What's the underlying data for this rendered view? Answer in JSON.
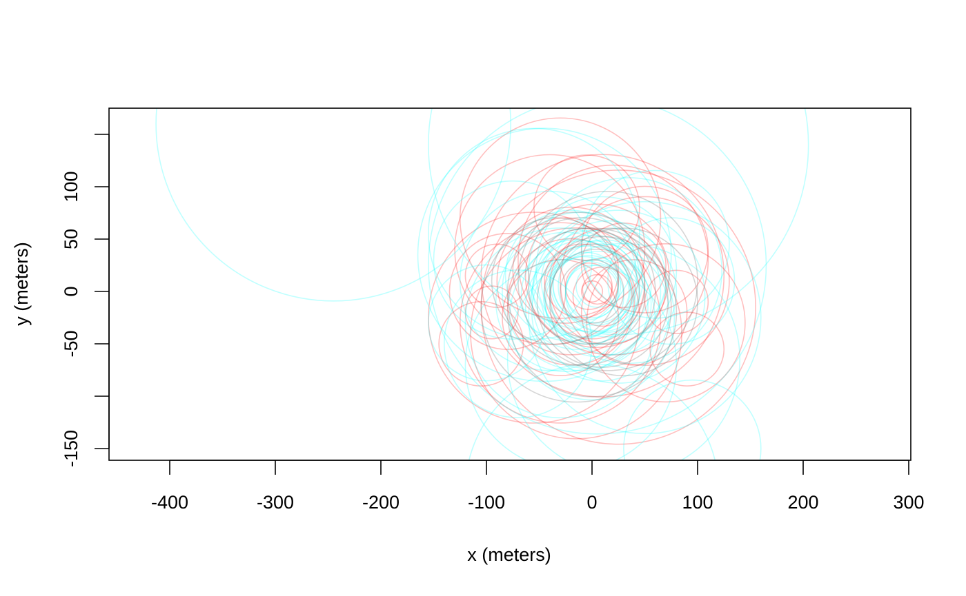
{
  "chart_data": {
    "type": "scatter",
    "title": "",
    "xlabel": "x (meters)",
    "ylabel": "y (meters)",
    "xlim": [
      -460,
      302
    ],
    "ylim": [
      -160,
      175
    ],
    "x_ticks": [
      -400,
      -300,
      -200,
      -100,
      0,
      100,
      200,
      300
    ],
    "y_ticks": [
      -150,
      -100,
      -50,
      0,
      50,
      100,
      150
    ],
    "x_tick_labels": [
      "-400",
      "-300",
      "-200",
      "-100",
      "0",
      "100",
      "200",
      "300"
    ],
    "y_tick_labels": [
      "-150",
      "",
      "-50",
      "0",
      "50",
      "100",
      ""
    ],
    "grid": false,
    "legend": null,
    "series": [
      {
        "color": "#FF0000",
        "opacity": 0.25,
        "circles": [
          {
            "cx": 0,
            "cy": 0,
            "r": 10
          },
          {
            "cx": 5,
            "cy": 2,
            "r": 14
          },
          {
            "cx": -3,
            "cy": 5,
            "r": 22
          },
          {
            "cx": 10,
            "cy": -5,
            "r": 28
          },
          {
            "cx": -10,
            "cy": 10,
            "r": 35
          },
          {
            "cx": 0,
            "cy": 0,
            "r": 45
          },
          {
            "cx": 15,
            "cy": 5,
            "r": 55
          },
          {
            "cx": -20,
            "cy": -10,
            "r": 60
          },
          {
            "cx": 5,
            "cy": 15,
            "r": 68
          },
          {
            "cx": 30,
            "cy": 25,
            "r": 40
          },
          {
            "cx": -25,
            "cy": 20,
            "r": 50
          },
          {
            "cx": 40,
            "cy": -20,
            "r": 50
          },
          {
            "cx": -30,
            "cy": -25,
            "r": 55
          },
          {
            "cx": -90,
            "cy": 15,
            "r": 30
          },
          {
            "cx": -95,
            "cy": -20,
            "r": 25
          },
          {
            "cx": -105,
            "cy": -50,
            "r": 40
          },
          {
            "cx": -80,
            "cy": 0,
            "r": 55
          },
          {
            "cx": 50,
            "cy": 40,
            "r": 60
          },
          {
            "cx": 90,
            "cy": -55,
            "r": 35
          },
          {
            "cx": 80,
            "cy": -10,
            "r": 30
          },
          {
            "cx": -5,
            "cy": 80,
            "r": 50
          },
          {
            "cx": 70,
            "cy": -30,
            "r": 75
          },
          {
            "cx": -40,
            "cy": 40,
            "r": 90
          },
          {
            "cx": -30,
            "cy": -30,
            "r": 95
          },
          {
            "cx": 20,
            "cy": 30,
            "r": 90
          },
          {
            "cx": -15,
            "cy": -40,
            "r": 100
          },
          {
            "cx": 25,
            "cy": -15,
            "r": 130
          },
          {
            "cx": -30,
            "cy": 70,
            "r": 95
          },
          {
            "cx": 10,
            "cy": 15,
            "r": 115
          },
          {
            "cx": -55,
            "cy": -25,
            "r": 100
          },
          {
            "cx": 50,
            "cy": 10,
            "r": 80
          },
          {
            "cx": -20,
            "cy": 10,
            "r": 70
          }
        ]
      },
      {
        "color": "#00FFFF",
        "opacity": 0.25,
        "circles": [
          {
            "cx": -245,
            "cy": 160,
            "r": 168
          },
          {
            "cx": 5,
            "cy": 5,
            "r": 20
          },
          {
            "cx": 0,
            "cy": 0,
            "r": 25
          },
          {
            "cx": 5,
            "cy": 0,
            "r": 30
          },
          {
            "cx": -5,
            "cy": 5,
            "r": 32
          },
          {
            "cx": 10,
            "cy": -3,
            "r": 35
          },
          {
            "cx": -8,
            "cy": -5,
            "r": 38
          },
          {
            "cx": 3,
            "cy": 8,
            "r": 40
          },
          {
            "cx": -3,
            "cy": -8,
            "r": 42
          },
          {
            "cx": 12,
            "cy": 5,
            "r": 44
          },
          {
            "cx": -10,
            "cy": 2,
            "r": 46
          },
          {
            "cx": 0,
            "cy": 10,
            "r": 48
          },
          {
            "cx": 6,
            "cy": -12,
            "r": 50
          },
          {
            "cx": -15,
            "cy": -3,
            "r": 52
          },
          {
            "cx": 15,
            "cy": 12,
            "r": 55
          },
          {
            "cx": -5,
            "cy": -15,
            "r": 58
          },
          {
            "cx": 20,
            "cy": 0,
            "r": 60
          },
          {
            "cx": -20,
            "cy": 15,
            "r": 62
          },
          {
            "cx": 8,
            "cy": -20,
            "r": 65
          },
          {
            "cx": -25,
            "cy": -10,
            "r": 66
          },
          {
            "cx": 10,
            "cy": 20,
            "r": 70
          },
          {
            "cx": -10,
            "cy": 0,
            "r": 75
          },
          {
            "cx": 0,
            "cy": -25,
            "r": 78
          },
          {
            "cx": 25,
            "cy": -5,
            "r": 82
          },
          {
            "cx": -40,
            "cy": 10,
            "r": 85
          },
          {
            "cx": 35,
            "cy": 20,
            "r": 88
          },
          {
            "cx": -30,
            "cy": -30,
            "r": 90
          },
          {
            "cx": -55,
            "cy": 55,
            "r": 100
          },
          {
            "cx": -70,
            "cy": -50,
            "r": 70
          },
          {
            "cx": -100,
            "cy": -30,
            "r": 55
          },
          {
            "cx": -75,
            "cy": 30,
            "r": 75
          },
          {
            "cx": 60,
            "cy": 45,
            "r": 70
          },
          {
            "cx": 75,
            "cy": 10,
            "r": 60
          },
          {
            "cx": 5,
            "cy": 25,
            "r": 160
          },
          {
            "cx": 25,
            "cy": 140,
            "r": 180
          },
          {
            "cx": 95,
            "cy": -150,
            "r": 65
          },
          {
            "cx": 0,
            "cy": -190,
            "r": 120
          },
          {
            "cx": -45,
            "cy": 35,
            "r": 120
          },
          {
            "cx": 30,
            "cy": -65,
            "r": 110
          },
          {
            "cx": -20,
            "cy": -70,
            "r": 100
          },
          {
            "cx": 50,
            "cy": -25,
            "r": 110
          }
        ]
      },
      {
        "color": "#777777",
        "opacity": 0.3,
        "circles": [
          {
            "cx": 0,
            "cy": 0,
            "r": 30
          },
          {
            "cx": 5,
            "cy": -5,
            "r": 45
          },
          {
            "cx": -5,
            "cy": 5,
            "r": 55
          },
          {
            "cx": 10,
            "cy": -10,
            "r": 62
          },
          {
            "cx": -10,
            "cy": 0,
            "r": 70
          },
          {
            "cx": 0,
            "cy": -20,
            "r": 80
          },
          {
            "cx": 15,
            "cy": 10,
            "r": 85
          },
          {
            "cx": -15,
            "cy": -15,
            "r": 90
          },
          {
            "cx": 30,
            "cy": -10,
            "r": 70
          },
          {
            "cx": -35,
            "cy": 10,
            "r": 60
          }
        ]
      }
    ]
  }
}
